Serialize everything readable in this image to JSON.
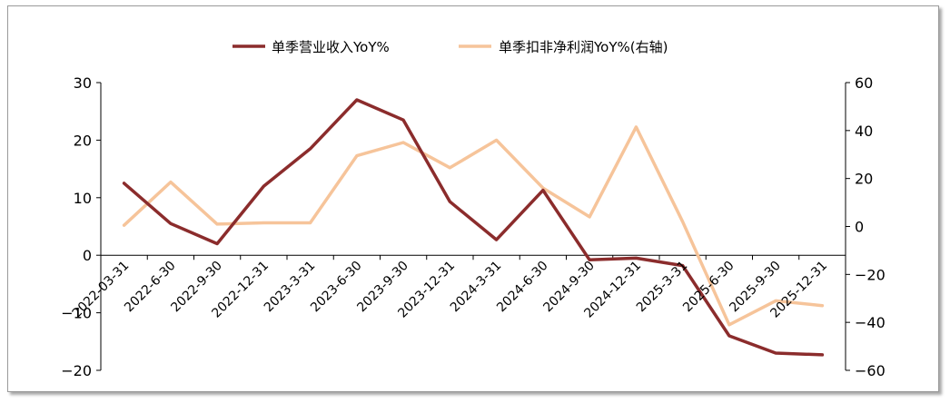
{
  "chart_data": {
    "type": "line",
    "x": [
      "2022-03-31",
      "2022-6-30",
      "2022-9-30",
      "2022-12-31",
      "2023-3-31",
      "2023-6-30",
      "2023-9-30",
      "2023-12-31",
      "2024-3-31",
      "2024-6-30",
      "2024-9-30",
      "2024-12-31",
      "2025-3-31",
      "2025-6-30",
      "2025-9-30",
      "2025-12-31"
    ],
    "series": [
      {
        "name": "单季营业收入YoY%",
        "axis": "left",
        "color": "#8b2c2c",
        "values": [
          12.5,
          5.5,
          2.0,
          12.0,
          18.5,
          27.0,
          23.5,
          9.3,
          2.7,
          11.3,
          -0.8,
          -0.5,
          -1.8,
          -14.0,
          -17.0,
          -17.3
        ]
      },
      {
        "name": "单季扣非净利润YoY%(右轴)",
        "axis": "right",
        "color": "#f6c49a",
        "values": [
          0.5,
          18.5,
          1.0,
          1.5,
          1.5,
          29.5,
          35.0,
          24.5,
          36.0,
          16.0,
          4.0,
          41.5,
          2.0,
          -41.0,
          -31.0,
          -33.0
        ]
      }
    ],
    "left_axis": {
      "ylim": [
        -20,
        30
      ],
      "ticks": [
        -20,
        -10,
        0,
        10,
        20,
        30
      ]
    },
    "right_axis": {
      "ylim": [
        -60,
        60
      ],
      "ticks": [
        -60,
        -40,
        -20,
        0,
        20,
        40,
        60
      ]
    },
    "legend_position": "top-center",
    "grid": false
  }
}
